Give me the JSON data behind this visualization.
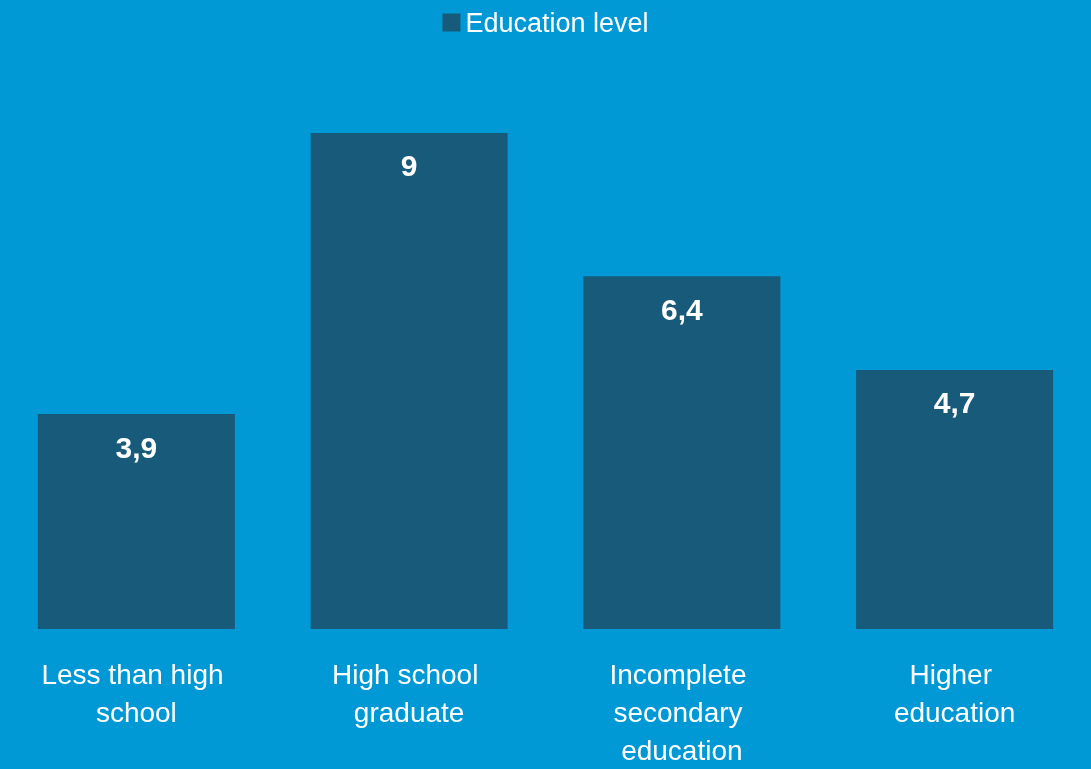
{
  "chart_data": {
    "type": "bar",
    "categories": [
      "Less than high school",
      "High school graduate",
      "Incomplete secondary education",
      "Higher education"
    ],
    "series": [
      {
        "name": "Education level",
        "color": "#185a7a",
        "values": [
          3.9,
          9,
          6.4,
          4.7
        ],
        "value_labels": [
          "3,9",
          "9",
          "6,4",
          "4,7"
        ]
      }
    ],
    "legend": "top",
    "grid": false
  }
}
